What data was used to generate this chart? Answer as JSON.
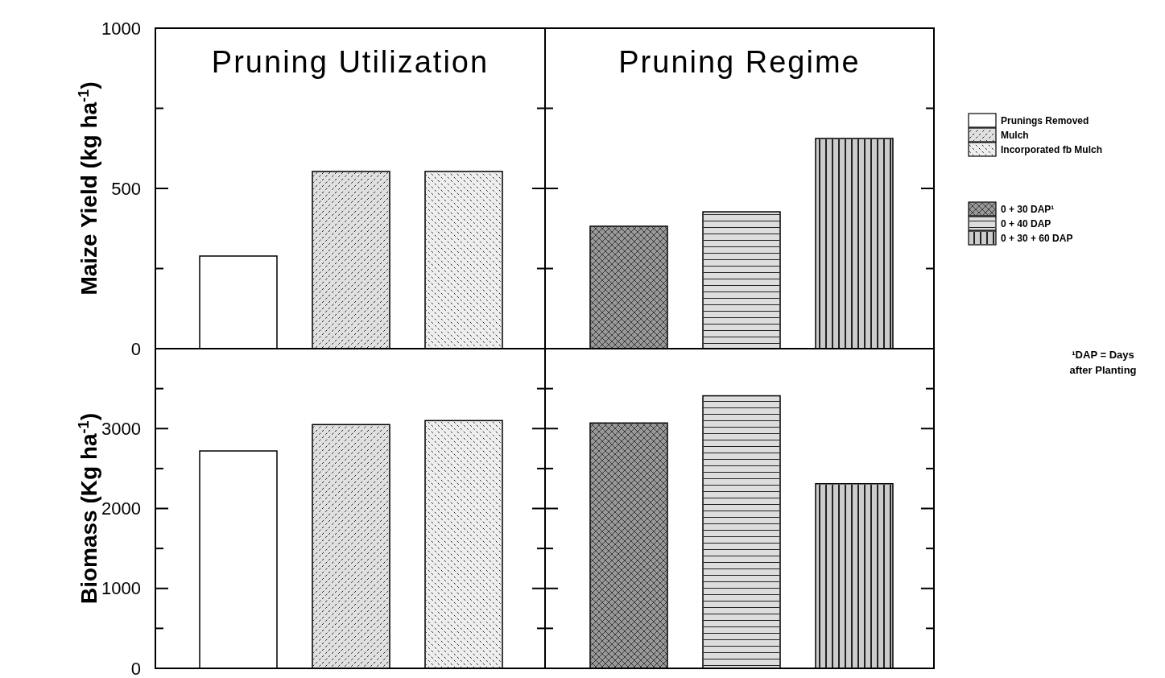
{
  "chart_data": [
    {
      "type": "bar",
      "ylabel": "Maize Yield (kg ha$^{-1}$)",
      "categories": [
        null,
        null,
        null,
        null,
        null,
        null
      ],
      "ylim": [
        0,
        1000
      ],
      "yticks": [
        0,
        {
          "value": 250,
          "label": null
        },
        500,
        {
          "value": 750,
          "label": null
        },
        1000
      ],
      "annotations": [
        "Pruning Utilization",
        "Pruning Regime",
        "¹DAP = Days after Planting",
        "Prunings Removed",
        "Mulch",
        "Incorporated fb Mulch",
        "0 + 30 DAP¹",
        "0 + 40 DAP",
        "0 + 30 + 60 DAP"
      ],
      "values": [
        289,
        553,
        553,
        382,
        427,
        656
      ],
      "colors": [
        "#ffffff",
        "#e0e0e0",
        "#eeeeee",
        "#999999",
        "#dddddd",
        "#cccccc"
      ]
    },
    {
      "type": "bar",
      "ylabel": "Biomass (Kg ha$^{-1}$)",
      "categories": [
        null,
        null,
        null,
        null,
        null,
        null
      ],
      "ylim": [
        0,
        4000
      ],
      "yticks": [
        0,
        {
          "value": 500,
          "label": null
        },
        1000,
        {
          "value": 1500,
          "label": null
        },
        2000,
        {
          "value": 2500,
          "label": null
        },
        3000,
        {
          "value": 3500,
          "label": null
        }
      ],
      "values": [
        2720,
        3050,
        3100,
        3070,
        3410,
        2310
      ],
      "colors": [
        "#ffffff",
        "#e0e0e0",
        "#eeeeee",
        "#999999",
        "#dddddd",
        "#cccccc"
      ]
    }
  ]
}
